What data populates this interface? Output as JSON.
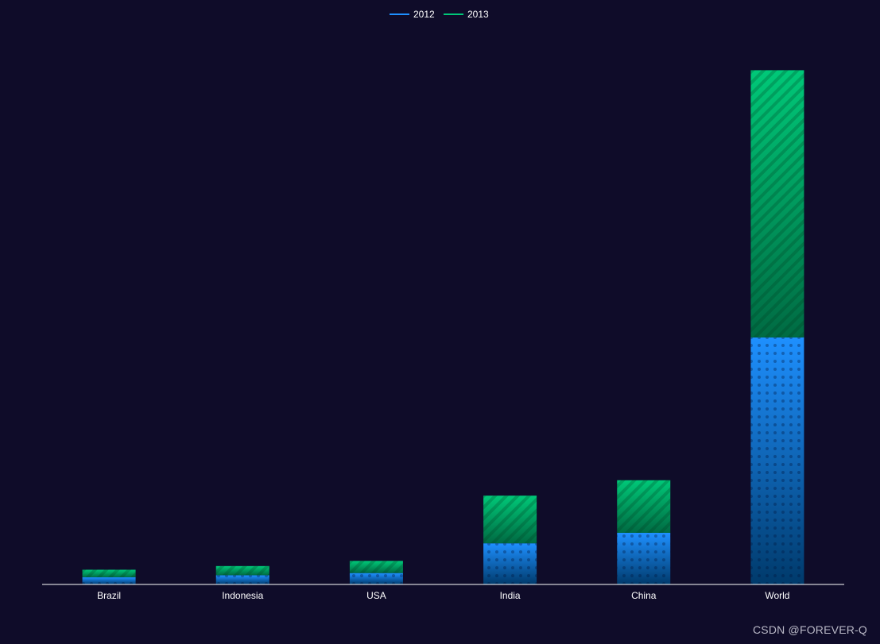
{
  "chart_data": {
    "type": "bar",
    "stacked": true,
    "categories": [
      "Brazil",
      "Indonesia",
      "USA",
      "India",
      "China",
      "World"
    ],
    "series": [
      {
        "name": "2012",
        "values": [
          18203,
          23489,
          29034,
          104970,
          131744,
          630230
        ],
        "color": "#1e90ff"
      },
      {
        "name": "2013",
        "values": [
          19325,
          23438,
          31000,
          121594,
          134141,
          681807
        ],
        "color": "#00c878"
      }
    ],
    "title": "",
    "xlabel": "",
    "ylabel": "",
    "ylim": [
      0,
      1400000
    ],
    "grid": false,
    "legend_position": "top-center"
  },
  "colors": {
    "background": "#0f0c29",
    "axis": "#ffffff",
    "series_2012_top": "#1e90ff",
    "series_2012_bottom": "#003a6b",
    "series_2013_top": "#00c878",
    "series_2013_bottom": "#006b43"
  },
  "watermark": "CSDN @FOREVER-Q"
}
